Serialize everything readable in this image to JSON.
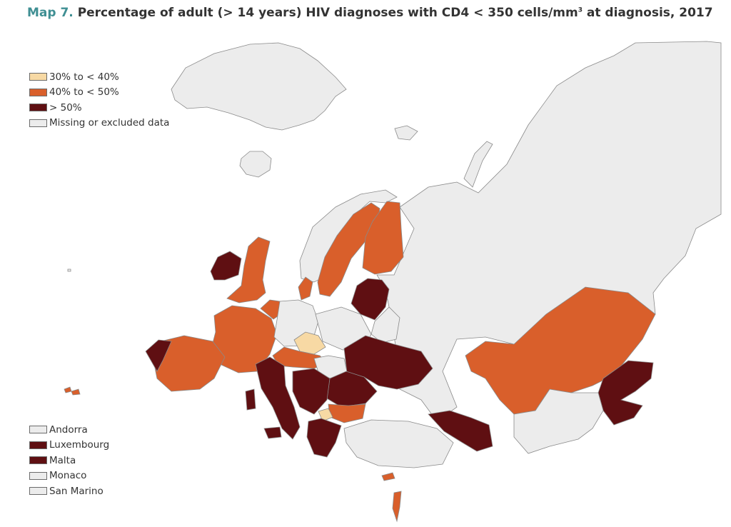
{
  "title": {
    "number": "Map 7.",
    "text": "Percentage of adult (> 14 years) HIV diagnoses with CD4 < 350 cells/mm",
    "superscript": "3",
    "suffix": " at diagnosis, 2017"
  },
  "colors": {
    "cat_30_40": "#f7d9a4",
    "cat_40_50": "#d95f2b",
    "cat_50": "#5f0f12",
    "missing": "#ececec"
  },
  "legend": [
    {
      "label": "30% to < 40%",
      "color": "#f7d9a4"
    },
    {
      "label": "40% to < 50%",
      "color": "#d95f2b"
    },
    {
      "label": "> 50%",
      "color": "#5f0f12"
    },
    {
      "label": "Missing or excluded data",
      "color": "#ececec"
    }
  ],
  "small_countries": [
    {
      "label": "Andorra",
      "color": "#ececec"
    },
    {
      "label": "Luxembourg",
      "color": "#5f0f12"
    },
    {
      "label": "Malta",
      "color": "#5f0f12"
    },
    {
      "label": "Monaco",
      "color": "#ececec"
    },
    {
      "label": "San Marino",
      "color": "#ececec"
    }
  ]
}
